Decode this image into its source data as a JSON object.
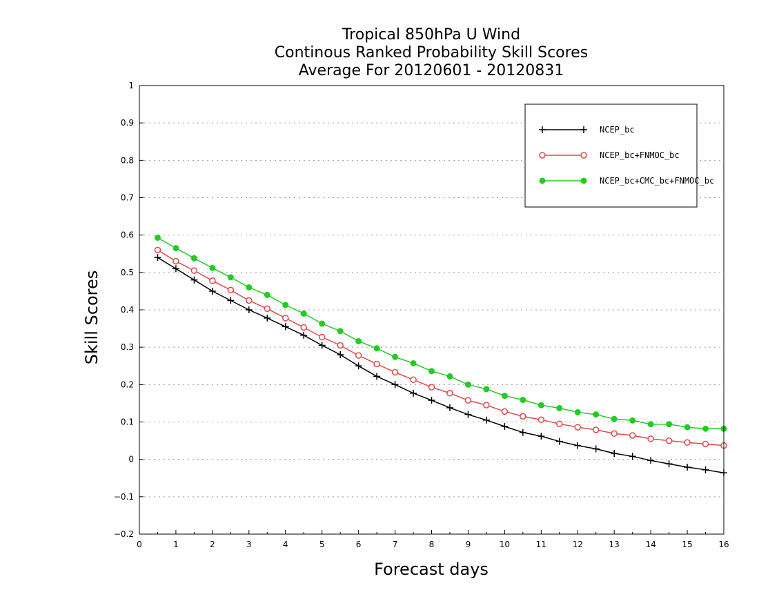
{
  "chart_data": {
    "type": "line",
    "title": [
      "Tropical 850hPa U Wind",
      "Continous Ranked Probability Skill Scores",
      "Average For 20120601 - 20120831"
    ],
    "xlabel": "Forecast days",
    "ylabel": "Skill Scores",
    "xlim": [
      0,
      16
    ],
    "ylim": [
      -0.2,
      1
    ],
    "x_ticks": [
      0,
      1,
      2,
      3,
      4,
      5,
      6,
      7,
      8,
      9,
      10,
      11,
      12,
      13,
      14,
      15,
      16
    ],
    "y_ticks": [
      -0.2,
      -0.1,
      0,
      0.1,
      0.2,
      0.3,
      0.4,
      0.5,
      0.6,
      0.7,
      0.8,
      0.9,
      1
    ],
    "y_tick_labels": [
      "−0.2",
      "−0.1",
      "0",
      "0.1",
      "0.2",
      "0.3",
      "0.4",
      "0.5",
      "0.6",
      "0.7",
      "0.8",
      "0.9",
      "1"
    ],
    "grid": "horizontal dotted",
    "legend_position": "top-right",
    "x": [
      0.5,
      1,
      1.5,
      2,
      2.5,
      3,
      3.5,
      4,
      4.5,
      5,
      5.5,
      6,
      6.5,
      7,
      7.5,
      8,
      8.5,
      9,
      9.5,
      10,
      10.5,
      11,
      11.5,
      12,
      12.5,
      13,
      13.5,
      14,
      14.5,
      15,
      15.5,
      16
    ],
    "series": [
      {
        "name": "NCEP_bc",
        "color": "#000000",
        "marker": "plus",
        "values": [
          0.54,
          0.51,
          0.48,
          0.45,
          0.425,
          0.4,
          0.378,
          0.355,
          0.332,
          0.305,
          0.28,
          0.25,
          0.222,
          0.2,
          0.177,
          0.158,
          0.138,
          0.12,
          0.105,
          0.088,
          0.072,
          0.062,
          0.048,
          0.037,
          0.028,
          0.016,
          0.008,
          -0.003,
          -0.012,
          -0.021,
          -0.028,
          -0.036
        ]
      },
      {
        "name": "NCEP_bc+FNMOC_bc",
        "color": "#e04848",
        "marker": "open-circle",
        "values": [
          0.56,
          0.53,
          0.505,
          0.478,
          0.453,
          0.425,
          0.403,
          0.378,
          0.353,
          0.327,
          0.305,
          0.278,
          0.255,
          0.233,
          0.213,
          0.193,
          0.177,
          0.158,
          0.145,
          0.128,
          0.115,
          0.106,
          0.095,
          0.086,
          0.079,
          0.069,
          0.064,
          0.055,
          0.05,
          0.045,
          0.041,
          0.037
        ]
      },
      {
        "name": "NCEP_bc+CMC_bc+FNMOC_bc",
        "color": "#22cc22",
        "marker": "filled-circle",
        "values": [
          0.593,
          0.565,
          0.538,
          0.512,
          0.487,
          0.46,
          0.44,
          0.413,
          0.39,
          0.363,
          0.343,
          0.316,
          0.297,
          0.274,
          0.257,
          0.236,
          0.222,
          0.2,
          0.188,
          0.17,
          0.159,
          0.145,
          0.137,
          0.126,
          0.12,
          0.108,
          0.104,
          0.094,
          0.094,
          0.086,
          0.082,
          0.082
        ]
      }
    ]
  }
}
